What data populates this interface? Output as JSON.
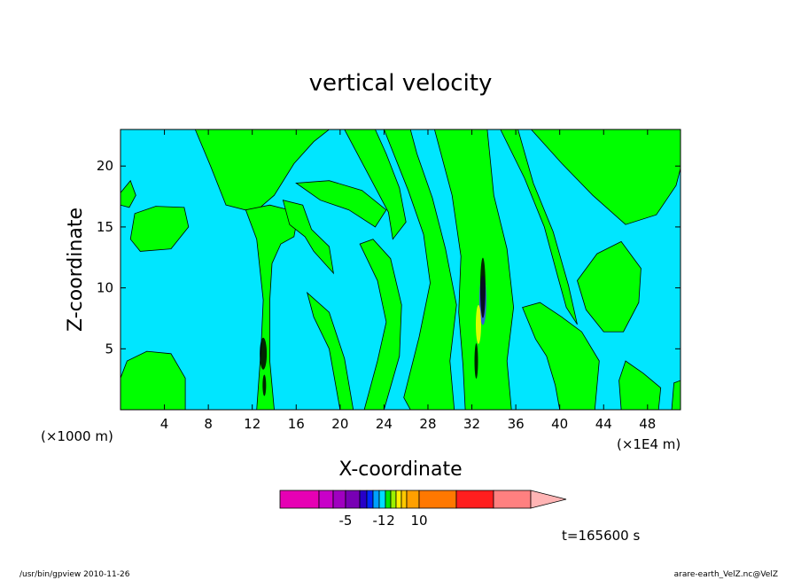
{
  "chart_data": {
    "type": "heatmap",
    "title": "vertical velocity",
    "xlabel": "X-coordinate",
    "ylabel": "Z-coordinate",
    "x_unit_left": "(×1000 m)",
    "x_unit_right": "(×1E4 m)",
    "xlim": [
      0,
      51
    ],
    "ylim": [
      0,
      23
    ],
    "x_ticks": [
      4,
      8,
      12,
      16,
      20,
      24,
      28,
      32,
      36,
      40,
      44,
      48
    ],
    "y_ticks": [
      5,
      10,
      15,
      20
    ],
    "colorbar": {
      "colors": [
        "#e600b4",
        "#c800c8",
        "#a000c0",
        "#7800b4",
        "#2800c8",
        "#0028ff",
        "#00a0ff",
        "#00dcff",
        "#00e600",
        "#9cf000",
        "#fff000",
        "#ffc800",
        "#ffa000",
        "#ff7800",
        "#ff1e1e",
        "#ff8080",
        "#ffb4b4"
      ],
      "tick_labels": [
        {
          "label": "-5",
          "between": 3
        },
        {
          "label": "-1",
          "between": 7
        },
        {
          "label": "2",
          "between": 9
        },
        {
          "label": "10",
          "between": 13
        }
      ]
    },
    "field_colors": {
      "negative": "#00e6ff",
      "positive": "#00ff00"
    },
    "time_label": "t=165600 s"
  },
  "footer": {
    "left": "/usr/bin/gpview   2010-11-26",
    "right": "arare-earth_VelZ.nc@VelZ"
  }
}
